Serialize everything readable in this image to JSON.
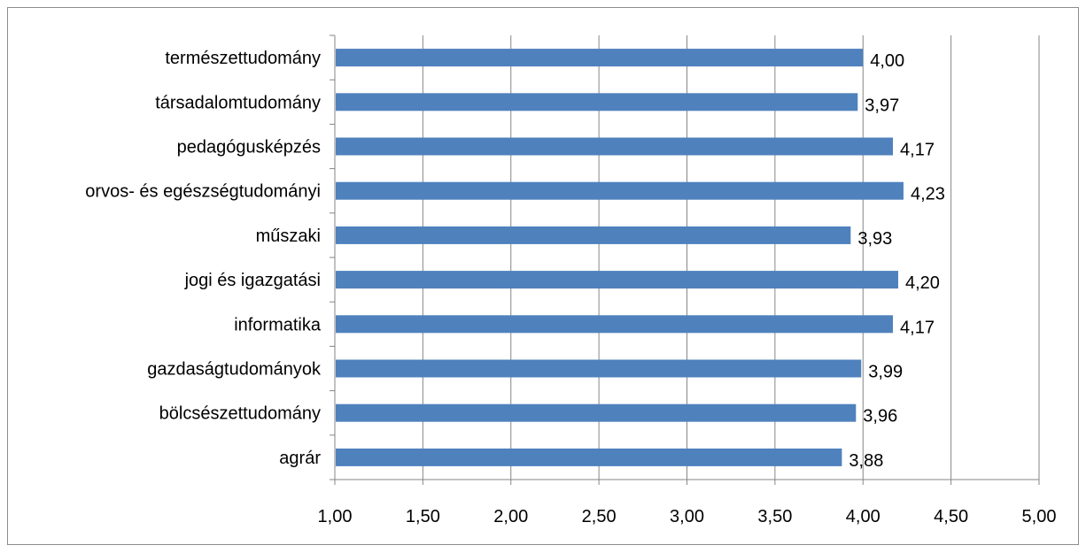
{
  "chart_data": {
    "type": "bar",
    "orientation": "horizontal",
    "categories": [
      "természettudomány",
      "társadalomtudomány",
      "pedagógusképzés",
      "orvos- és egészségtudományi",
      "műszaki",
      "jogi és igazgatási",
      "informatika",
      "gazdaságtudományok",
      "bölcsészettudomány",
      "agrár"
    ],
    "values": [
      4.0,
      3.97,
      4.17,
      4.23,
      3.93,
      4.2,
      4.17,
      3.99,
      3.96,
      3.88
    ],
    "value_labels": [
      "4,00",
      "3,97",
      "4,17",
      "4,23",
      "3,93",
      "4,20",
      "4,17",
      "3,99",
      "3,96",
      "3,88"
    ],
    "xlim": [
      1.0,
      5.0
    ],
    "xticks": [
      1.0,
      1.5,
      2.0,
      2.5,
      3.0,
      3.5,
      4.0,
      4.5,
      5.0
    ],
    "xtick_labels": [
      "1,00",
      "1,50",
      "2,00",
      "2,50",
      "3,00",
      "3,50",
      "4,00",
      "4,50",
      "5,00"
    ],
    "title": "",
    "xlabel": "",
    "ylabel": "",
    "grid": "vertical",
    "legend": "none",
    "bar_color": "#4f81bd",
    "grid_color": "#868686"
  }
}
